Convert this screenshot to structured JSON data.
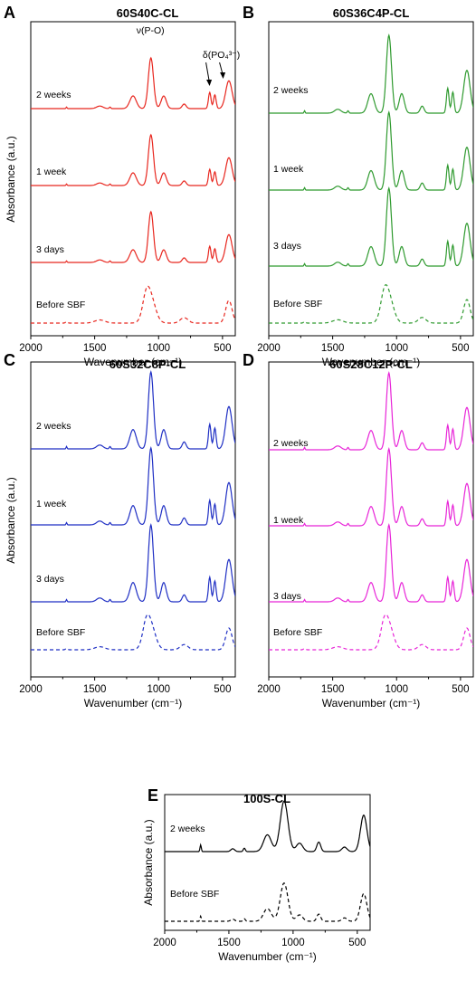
{
  "chart_data": [
    {
      "id": "A",
      "type": "line",
      "letter": "A",
      "title": "60S40C-CL",
      "xlabel": "Wavenumber (cm⁻¹)",
      "ylabel": "Absorbance (a.u.)",
      "xlim": [
        2000,
        400
      ],
      "xticks": [
        "2000",
        "1500",
        "1000",
        "500"
      ],
      "color": "#e8261e",
      "annotations": [
        {
          "text": "ν(P-O)",
          "x": 1050
        },
        {
          "text": "δ(PO₄³⁻)",
          "x": 580
        }
      ],
      "series": [
        {
          "label": "2 weeks",
          "style": "solid",
          "curve": "sbf"
        },
        {
          "label": "1 week",
          "style": "solid",
          "curve": "sbf"
        },
        {
          "label": "3 days",
          "style": "solid",
          "curve": "sbf"
        },
        {
          "label": "Before SBF",
          "style": "dashed",
          "curve": "base"
        }
      ]
    },
    {
      "id": "B",
      "type": "line",
      "letter": "B",
      "title": "60S36C4P-CL",
      "xlabel": "Wavenumber (cm⁻¹)",
      "ylabel": "Absorbance (a.u.)",
      "xlim": [
        2000,
        400
      ],
      "xticks": [
        "2000",
        "1500",
        "1000",
        "500"
      ],
      "color": "#2f9a2f",
      "annotations": [],
      "series": [
        {
          "label": "2 weeks",
          "style": "solid",
          "curve": "sbf"
        },
        {
          "label": "1 week",
          "style": "solid",
          "curve": "sbf"
        },
        {
          "label": "3 days",
          "style": "solid",
          "curve": "sbf"
        },
        {
          "label": "Before SBF",
          "style": "dashed",
          "curve": "base"
        }
      ]
    },
    {
      "id": "C",
      "type": "line",
      "letter": "C",
      "title": "60S32C8P-CL",
      "xlabel": "Wavenumber (cm⁻¹)",
      "ylabel": "Absorbance (a.u.)",
      "xlim": [
        2000,
        400
      ],
      "xticks": [
        "2000",
        "1500",
        "1000",
        "500"
      ],
      "color": "#1f2fc4",
      "annotations": [],
      "series": [
        {
          "label": "2 weeks",
          "style": "solid",
          "curve": "sbf"
        },
        {
          "label": "1 week",
          "style": "solid",
          "curve": "sbf"
        },
        {
          "label": "3 days",
          "style": "solid",
          "curve": "sbf"
        },
        {
          "label": "Before SBF",
          "style": "dashed",
          "curve": "base"
        }
      ]
    },
    {
      "id": "D",
      "type": "line",
      "letter": "D",
      "title": "60S28C12P-CL",
      "xlabel": "Wavenumber (cm⁻¹)",
      "ylabel": "Absorbance (a.u.)",
      "xlim": [
        2000,
        400
      ],
      "xticks": [
        "2000",
        "1500",
        "1000",
        "500"
      ],
      "color": "#e825d8",
      "annotations": [],
      "series": [
        {
          "label": "2 weeks",
          "style": "solid",
          "curve": "sbf"
        },
        {
          "label": "1 week",
          "style": "solid",
          "curve": "sbf"
        },
        {
          "label": "3 days",
          "style": "solid",
          "curve": "sbf"
        },
        {
          "label": "Before SBF",
          "style": "dashed",
          "curve": "base"
        }
      ]
    },
    {
      "id": "E",
      "type": "line",
      "letter": "E",
      "title": "100S-CL",
      "xlabel": "Wavenumber (cm⁻¹)",
      "ylabel": "Absorbance (a.u.)",
      "xlim": [
        2000,
        400
      ],
      "xticks": [
        "2000",
        "1500",
        "1000",
        "500"
      ],
      "color": "#000000",
      "annotations": [],
      "series": [
        {
          "label": "2 weeks",
          "style": "solid",
          "curve": "pure"
        },
        {
          "label": "Before SBF",
          "style": "dashed",
          "curve": "pure"
        }
      ]
    }
  ]
}
